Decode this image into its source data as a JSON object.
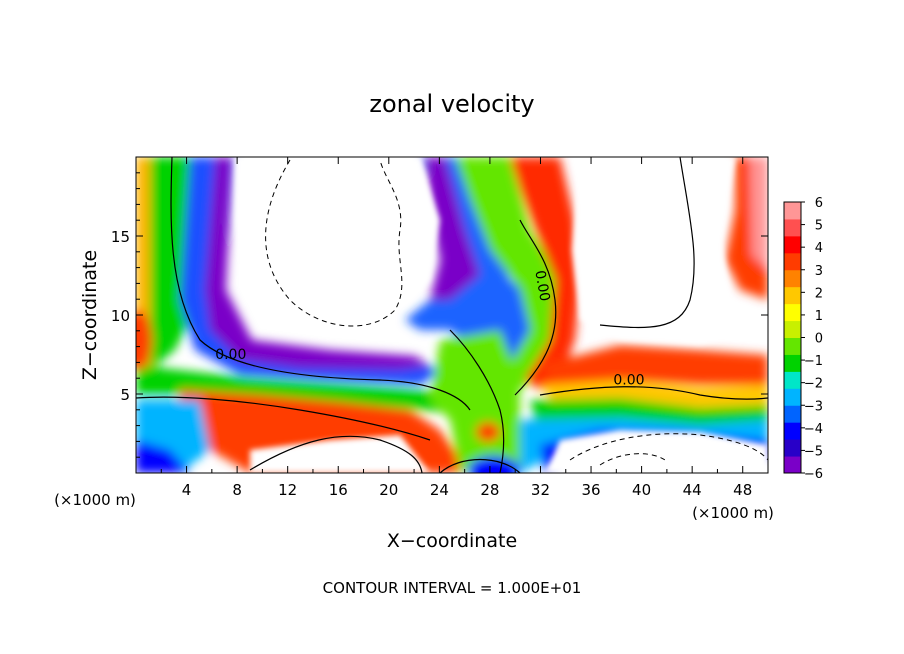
{
  "chart_data": {
    "type": "heatmap",
    "title": "zonal velocity",
    "xlabel": "X−coordinate",
    "ylabel": "Z−coordinate",
    "x_unit_left": "(×1000 m)",
    "x_unit_right": "(×1000 m)",
    "footer": "CONTOUR INTERVAL = 1.000E+01",
    "xlim": [
      0,
      50
    ],
    "ylim": [
      0,
      20
    ],
    "xticks": [
      4,
      8,
      12,
      16,
      20,
      24,
      28,
      32,
      36,
      40,
      44,
      48
    ],
    "xtick_labels": [
      "4",
      "8",
      "12",
      "16",
      "20",
      "24",
      "28",
      "32",
      "36",
      "40",
      "44",
      "48"
    ],
    "yticks": [
      5,
      10,
      15
    ],
    "ytick_labels": [
      "5",
      "10",
      "15"
    ],
    "colorbar": {
      "min": -6,
      "max": 6,
      "ticks": [
        6,
        5,
        4,
        3,
        2,
        1,
        0,
        -1,
        -2,
        -3,
        -4,
        -5,
        -6
      ],
      "tick_labels": [
        "6",
        "5",
        "4",
        "3",
        "2",
        "1",
        "0",
        "−1",
        "−2",
        "−3",
        "−4",
        "−5",
        "−6"
      ],
      "colors": [
        "#7a00c8",
        "#2800c8",
        "#0000ff",
        "#0064ff",
        "#00b4ff",
        "#00e6c8",
        "#00d200",
        "#64e600",
        "#c8f000",
        "#ffff00",
        "#ffc800",
        "#ff8200",
        "#ff3c00",
        "#ff0000",
        "#ff5050",
        "#ff9696"
      ]
    },
    "contour_labels": [
      {
        "text": "0.00",
        "x": 7.5,
        "y": 7.2
      },
      {
        "text": "0.00",
        "x": 31.8,
        "y": 11.8
      },
      {
        "text": "0.00",
        "x": 39.0,
        "y": 5.6
      }
    ]
  }
}
